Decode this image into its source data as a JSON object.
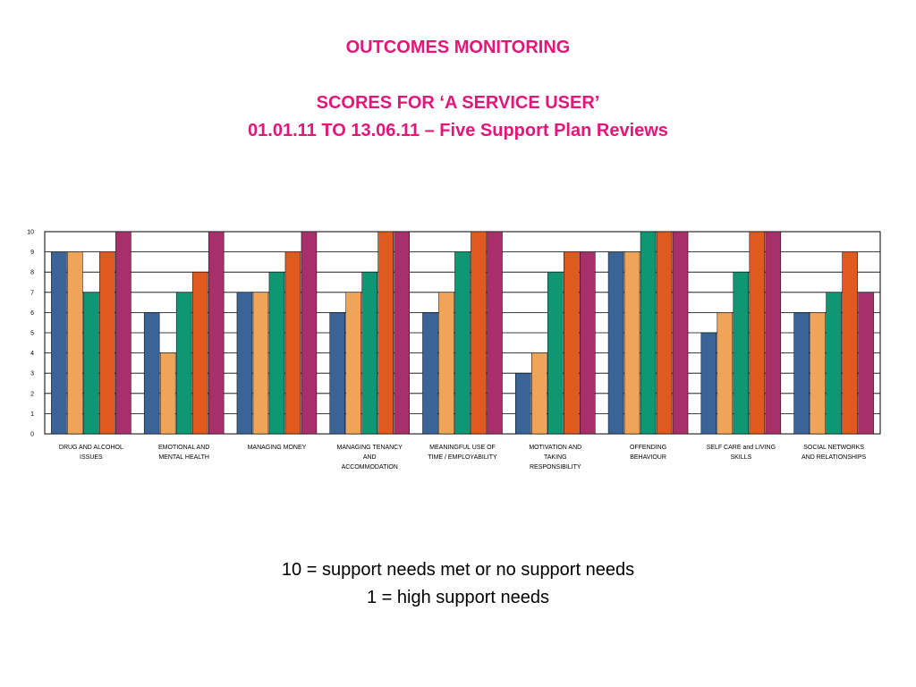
{
  "header": {
    "title": "OUTCOMES MONITORING",
    "subtitle_line1": "SCORES FOR ‘A SERVICE USER’",
    "subtitle_line2": "01.01.11 TO 13.06.11 – Five Support Plan Reviews"
  },
  "chart_data": {
    "type": "bar",
    "categories": [
      [
        "DRUG AND ALCOHOL",
        "ISSUES"
      ],
      [
        "EMOTIONAL AND",
        "MENTAL HEALTH"
      ],
      [
        "MANAGING MONEY"
      ],
      [
        "MANAGING TENANCY",
        "AND",
        "ACCOMMODATION"
      ],
      [
        "MEANINGFUL USE OF",
        "TIME / EMPLOYABILITY"
      ],
      [
        "MOTIVATION AND",
        "TAKING",
        "RESPONSIBILITY"
      ],
      [
        "OFFENDING",
        "BEHAVIOUR"
      ],
      [
        "SELF CARE and LIVING",
        "SKILLS"
      ],
      [
        "SOCIAL NETWORKS",
        "AND RELATIONSHIPS"
      ]
    ],
    "series": [
      {
        "color": "#3a6496",
        "values": [
          9,
          6,
          7,
          6,
          6,
          3,
          9,
          5,
          6
        ]
      },
      {
        "color": "#f0a458",
        "values": [
          9,
          4,
          7,
          7,
          7,
          4,
          9,
          6,
          6
        ]
      },
      {
        "color": "#0f9673",
        "values": [
          7,
          7,
          8,
          8,
          9,
          8,
          10,
          8,
          7
        ]
      },
      {
        "color": "#e0591f",
        "values": [
          9,
          8,
          9,
          10,
          10,
          9,
          10,
          10,
          9
        ]
      },
      {
        "color": "#a8306a",
        "values": [
          10,
          10,
          10,
          10,
          10,
          9,
          10,
          10,
          7
        ]
      }
    ],
    "ylim": [
      0,
      10
    ],
    "yticks": [
      "0",
      "1",
      "2",
      "3",
      "4",
      "5",
      "6",
      "7",
      "8",
      "9",
      "10"
    ],
    "grid": true,
    "legend": "none"
  },
  "notes": {
    "line1": "10 = support needs met or no support needs",
    "line2": "1 = high support needs"
  }
}
